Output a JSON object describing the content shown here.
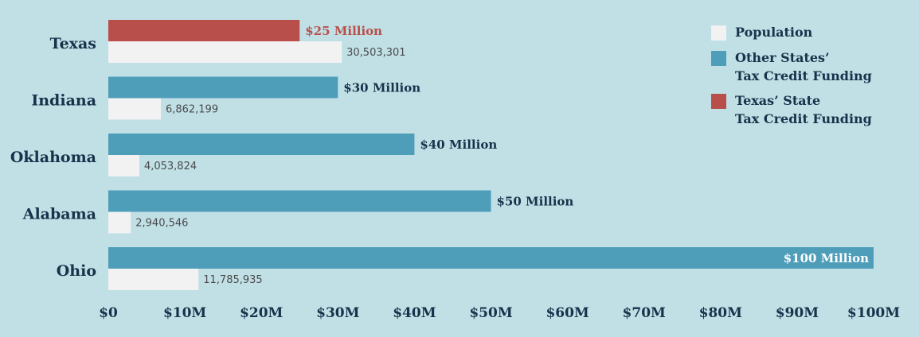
{
  "colors": {
    "background": "#c0e0e6",
    "population": "#f2f2f2",
    "other_states": "#4e9db9",
    "texas": "#b94f4a",
    "text": "#17324a",
    "population_text": "#4a4a4a"
  },
  "legend": {
    "placement": "top-right",
    "items": [
      {
        "key": "population",
        "lines": [
          "Population"
        ]
      },
      {
        "key": "other_states",
        "lines": [
          "Other States’",
          "Tax Credit Funding"
        ]
      },
      {
        "key": "texas",
        "lines": [
          "Texas’ State",
          "Tax Credit Funding"
        ]
      }
    ]
  },
  "chart_data": {
    "type": "bar",
    "orientation": "horizontal",
    "categories": [
      "Texas",
      "Indiana",
      "Oklahoma",
      "Alabama",
      "Ohio"
    ],
    "series": [
      {
        "name": "Tax Credit Funding",
        "values": [
          25,
          30,
          40,
          50,
          100
        ],
        "value_labels": [
          "$25 Million",
          "$30 Million",
          "$40 Million",
          "$50 Million",
          "$100 Million"
        ],
        "colors": [
          "texas",
          "other_states",
          "other_states",
          "other_states",
          "other_states"
        ]
      },
      {
        "name": "Population",
        "values": [
          30503301,
          6862199,
          4053824,
          2940546,
          11785935
        ],
        "display_scale_millions": [
          30.503301,
          6.862199,
          4.053824,
          2.940546,
          11.785935
        ],
        "value_labels": [
          "30,503,301",
          "6,862,199",
          "4,053,824",
          "2,940,546",
          "11,785,935"
        ]
      }
    ],
    "xlim": [
      0,
      100
    ],
    "xticks": [
      0,
      10,
      20,
      30,
      40,
      50,
      60,
      70,
      80,
      90,
      100
    ],
    "xtick_labels": [
      "$0",
      "$10M",
      "$20M",
      "$30M",
      "$40M",
      "$50M",
      "$60M",
      "$70M",
      "$80M",
      "$90M",
      "$100M"
    ],
    "grid": false
  }
}
